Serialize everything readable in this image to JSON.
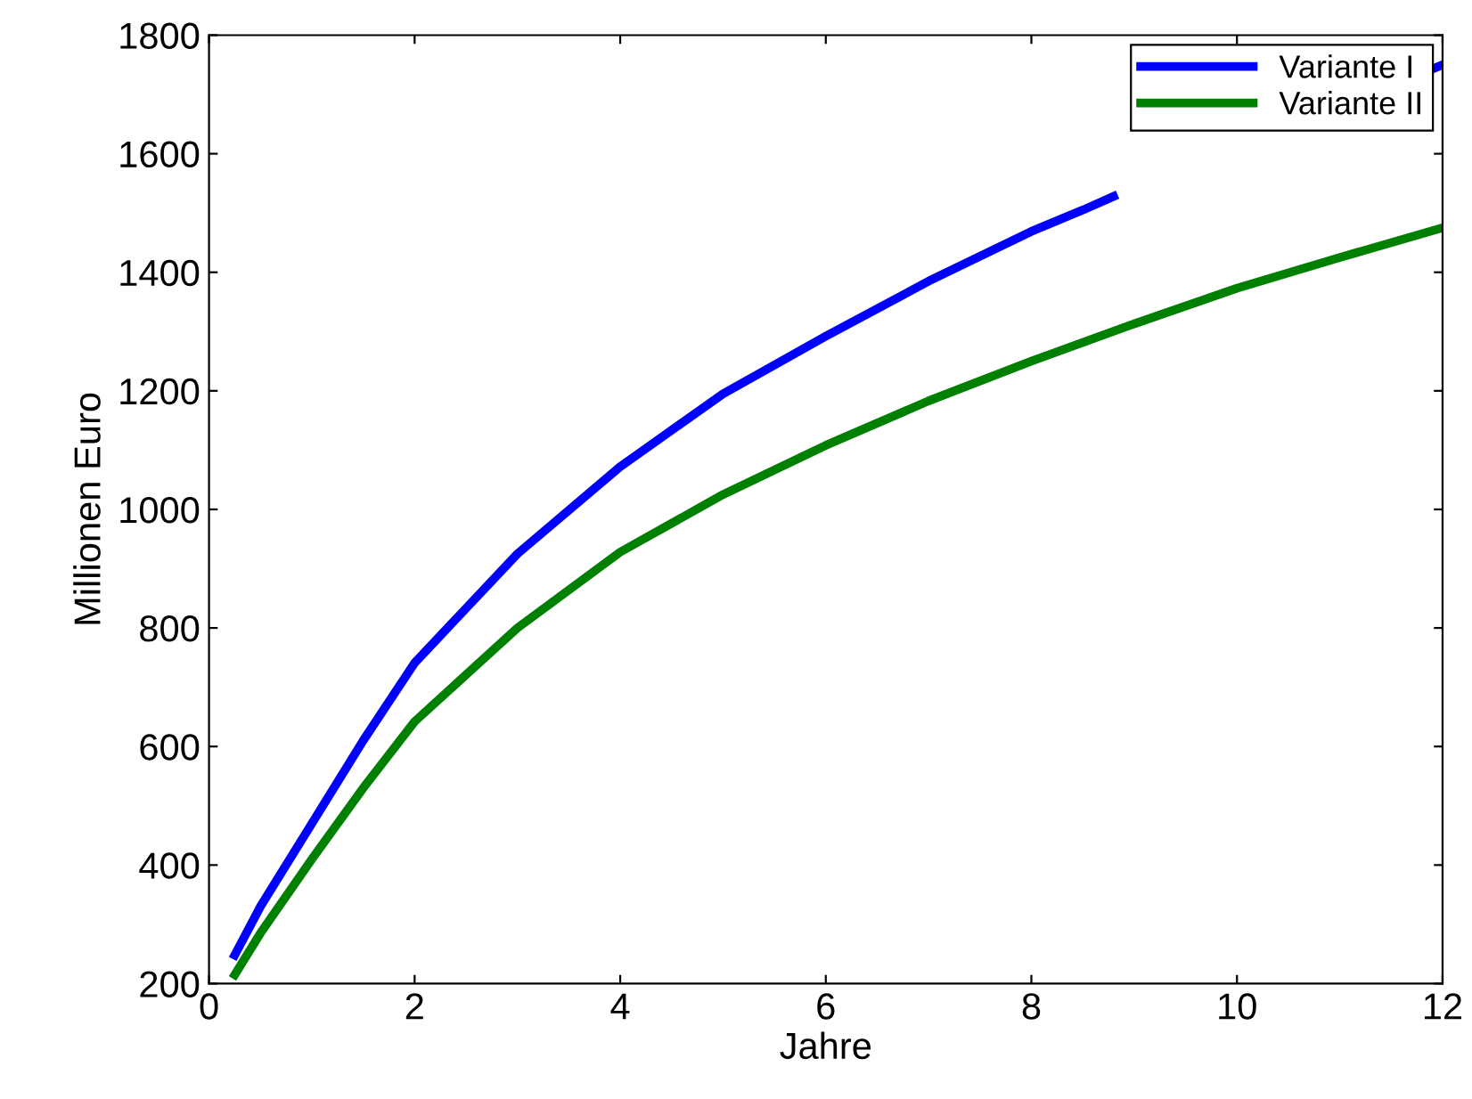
{
  "chart_data": {
    "type": "line",
    "xlabel": "Jahre",
    "ylabel": "Millionen Euro",
    "xlim": [
      0,
      12
    ],
    "xticks": [
      0,
      2,
      4,
      6,
      8,
      10,
      12
    ],
    "ylim": [
      200,
      1800
    ],
    "yticks": [
      200,
      400,
      600,
      800,
      1000,
      1200,
      1400,
      1600,
      1800
    ],
    "grid": false,
    "legend": "top right",
    "marker": "none",
    "line_style": "solid",
    "series": [
      {
        "name": "Variante I",
        "color": "#0000ff",
        "x": [
          0.25,
          0.5,
          1,
          1.5,
          2,
          3,
          4,
          5,
          6,
          7,
          8,
          8.5,
          8.8,
          9,
          10,
          11,
          11.93,
          12
        ],
        "values": [
          248,
          330,
          470,
          610,
          741,
          925,
          1072,
          1195,
          1292,
          1385,
          1469,
          1505,
          1528,
          null,
          null,
          null,
          1745,
          1750
        ]
      },
      {
        "name": "Variante II",
        "color": "#008000",
        "x": [
          0.25,
          0.5,
          1,
          1.5,
          2,
          3,
          4,
          5,
          6,
          7,
          8,
          9,
          10,
          11,
          12
        ],
        "values": [
          215,
          285,
          410,
          530,
          642,
          800,
          928,
          1025,
          1108,
          1183,
          1250,
          1313,
          1373,
          1425,
          1475
        ]
      }
    ]
  }
}
